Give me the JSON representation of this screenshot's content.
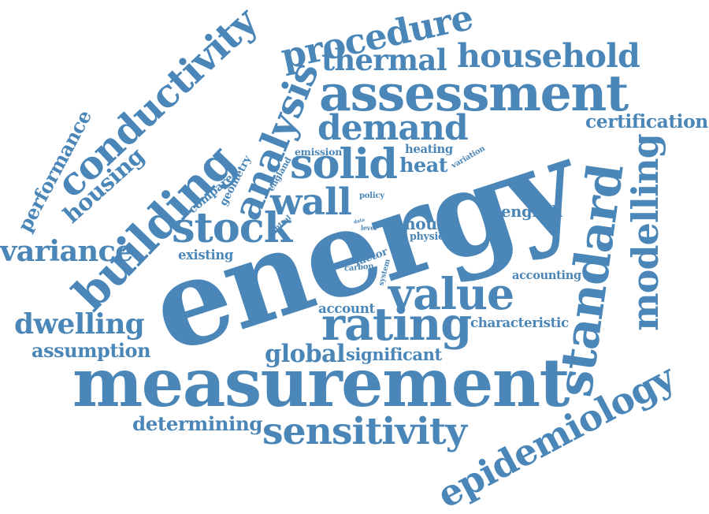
{
  "color": "#4a86b7",
  "words": [
    {
      "id": "energy",
      "text": "energy"
    },
    {
      "id": "measurement",
      "text": "measurement"
    },
    {
      "id": "building",
      "text": "building"
    },
    {
      "id": "assessment",
      "text": "assessment"
    },
    {
      "id": "epidemiology",
      "text": "epidemiology"
    },
    {
      "id": "standard",
      "text": "standard"
    },
    {
      "id": "conductivity",
      "text": "conductivity"
    },
    {
      "id": "procedure",
      "text": "procedure"
    },
    {
      "id": "household",
      "text": "household"
    },
    {
      "id": "modelling",
      "text": "modelling"
    },
    {
      "id": "analysis",
      "text": "analysis"
    },
    {
      "id": "rating",
      "text": "rating"
    },
    {
      "id": "value",
      "text": "value"
    },
    {
      "id": "sensitivity",
      "text": "sensitivity"
    },
    {
      "id": "stock",
      "text": "stock"
    },
    {
      "id": "solid",
      "text": "solid"
    },
    {
      "id": "demand",
      "text": "demand"
    },
    {
      "id": "housing",
      "text": "housing"
    },
    {
      "id": "wall",
      "text": "wall"
    },
    {
      "id": "thermal",
      "text": "thermal"
    },
    {
      "id": "dwelling",
      "text": "dwelling"
    },
    {
      "id": "variance",
      "text": "variance"
    },
    {
      "id": "performance",
      "text": "performance"
    },
    {
      "id": "heat",
      "text": "heat"
    },
    {
      "id": "global",
      "text": "global"
    },
    {
      "id": "certification",
      "text": "certification"
    },
    {
      "id": "determining",
      "text": "determining"
    },
    {
      "id": "assumption",
      "text": "assumption"
    },
    {
      "id": "significant",
      "text": "significant"
    },
    {
      "id": "characteristic",
      "text": "characteristic"
    },
    {
      "id": "english",
      "text": "english"
    },
    {
      "id": "house",
      "text": "house"
    },
    {
      "id": "compared",
      "text": "compared"
    },
    {
      "id": "accounting",
      "text": "accounting"
    },
    {
      "id": "account",
      "text": "account"
    },
    {
      "id": "existing",
      "text": "existing"
    },
    {
      "id": "heating",
      "text": "heating"
    },
    {
      "id": "emission",
      "text": "emission"
    },
    {
      "id": "geometry",
      "text": "geometry"
    },
    {
      "id": "factor",
      "text": "factor"
    },
    {
      "id": "physical",
      "text": "physical"
    },
    {
      "id": "variation",
      "text": "variation"
    },
    {
      "id": "carbon",
      "text": "carbon"
    },
    {
      "id": "england",
      "text": "england"
    },
    {
      "id": "system",
      "text": "system"
    },
    {
      "id": "policy",
      "text": "policy"
    },
    {
      "id": "central",
      "text": "central"
    },
    {
      "id": "data",
      "text": "data"
    },
    {
      "id": "level",
      "text": "level"
    }
  ]
}
